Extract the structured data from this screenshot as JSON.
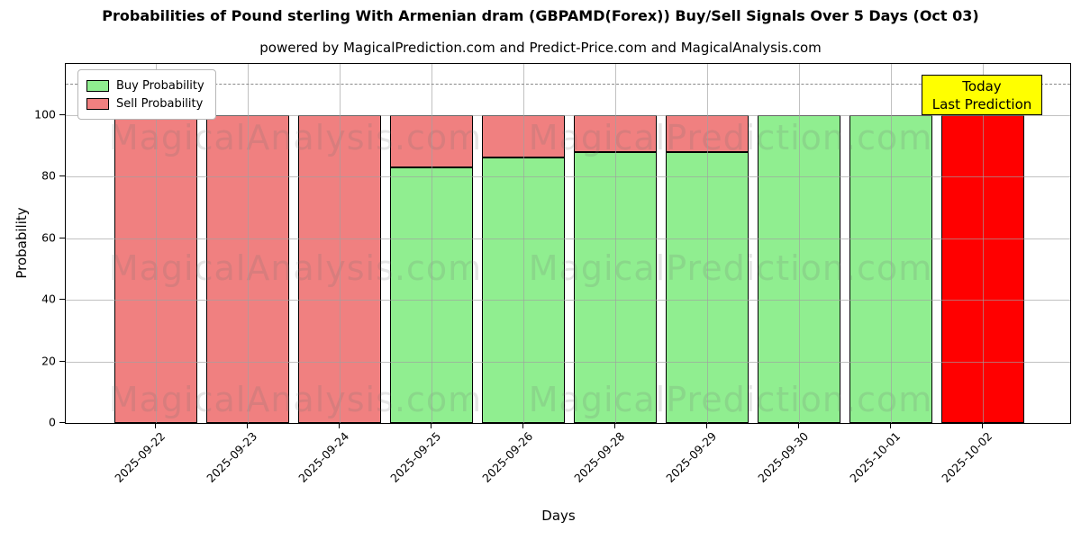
{
  "title": "Probabilities of Pound sterling With Armenian dram (GBPAMD(Forex)) Buy/Sell Signals Over 5 Days (Oct 03)",
  "subtitle": "powered by MagicalPrediction.com and Predict-Price.com and MagicalAnalysis.com",
  "legend": {
    "entries": [
      {
        "label": "Buy Probability",
        "color": "#90EE90"
      },
      {
        "label": "Sell Probability",
        "color": "#F08080"
      }
    ]
  },
  "annotation": {
    "line1": "Today",
    "line2": "Last Prediction",
    "bg": "#FFFF00"
  },
  "watermarks": {
    "left": "MagicalAnalysis.com",
    "right": "MagicalPrediction.com"
  },
  "chart_data": {
    "type": "bar",
    "stacked": true,
    "title": "Probabilities of Pound sterling With Armenian dram (GBPAMD(Forex)) Buy/Sell Signals Over 5 Days (Oct 03)",
    "xlabel": "Days",
    "ylabel": "Probability",
    "categories": [
      "2025-09-22",
      "2025-09-23",
      "2025-09-24",
      "2025-09-25",
      "2025-09-26",
      "2025-09-28",
      "2025-09-29",
      "2025-09-30",
      "2025-10-01",
      "2025-10-02"
    ],
    "series": [
      {
        "name": "Buy Probability",
        "color": "#90EE90",
        "values": [
          0,
          0,
          0,
          83,
          86,
          88,
          88,
          100,
          100,
          0
        ]
      },
      {
        "name": "Sell Probability",
        "color": "#F08080",
        "values": [
          100,
          100,
          100,
          17,
          14,
          12,
          12,
          0,
          0,
          0
        ]
      },
      {
        "name": "Last Prediction",
        "color": "#FF0000",
        "values": [
          0,
          0,
          0,
          0,
          0,
          0,
          0,
          0,
          0,
          100
        ]
      }
    ],
    "yticks": [
      0,
      20,
      40,
      60,
      80,
      100
    ],
    "ylim": [
      0,
      116.5
    ],
    "dashed_line_y": 110,
    "grid": true,
    "legend_position": "upper left",
    "bar_edge_color": "#000000"
  }
}
